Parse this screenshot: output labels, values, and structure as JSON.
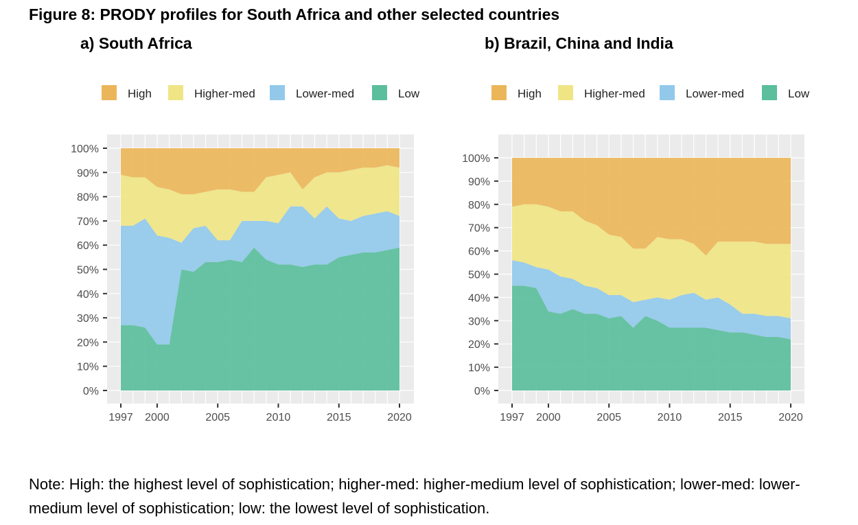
{
  "figure_title": "Figure 8: PRODY profiles for South Africa and other selected countries",
  "note": "Note: High: the highest level of sophistication; higher-med: higher-medium level of sophistication; lower-med: lower-medium level of sophistication; low: the lowest level of sophistication.",
  "colors": {
    "High": "#EBB65A",
    "Higher-med": "#EFE585",
    "Lower-med": "#92C9EA",
    "Low": "#5BBE9C",
    "panel_bg": "#EBEBEB",
    "grid": "#FFFFFF"
  },
  "chart_data": [
    {
      "type": "area",
      "title": "a) South Africa",
      "stacked": true,
      "legend_position": "top",
      "grid": true,
      "x": [
        1997,
        1998,
        1999,
        2000,
        2001,
        2002,
        2003,
        2004,
        2005,
        2006,
        2007,
        2008,
        2009,
        2010,
        2011,
        2012,
        2013,
        2014,
        2015,
        2016,
        2017,
        2018,
        2019,
        2020
      ],
      "xticks": [
        1997,
        2000,
        2005,
        2010,
        2015,
        2020
      ],
      "xlim": [
        1997,
        2020
      ],
      "ylim": [
        0,
        1
      ],
      "yticks": [
        "0%",
        "10%",
        "20%",
        "30%",
        "40%",
        "50%",
        "60%",
        "70%",
        "80%",
        "90%",
        "100%"
      ],
      "series": [
        {
          "name": "Low",
          "values": [
            0.27,
            0.27,
            0.26,
            0.19,
            0.19,
            0.5,
            0.49,
            0.53,
            0.53,
            0.54,
            0.53,
            0.59,
            0.54,
            0.52,
            0.52,
            0.51,
            0.52,
            0.52,
            0.55,
            0.56,
            0.57,
            0.57,
            0.58,
            0.59
          ]
        },
        {
          "name": "Lower-med",
          "values": [
            0.41,
            0.41,
            0.45,
            0.45,
            0.44,
            0.11,
            0.18,
            0.15,
            0.09,
            0.08,
            0.17,
            0.11,
            0.16,
            0.17,
            0.24,
            0.25,
            0.19,
            0.24,
            0.16,
            0.14,
            0.15,
            0.16,
            0.16,
            0.13
          ]
        },
        {
          "name": "Higher-med",
          "values": [
            0.21,
            0.2,
            0.17,
            0.2,
            0.2,
            0.2,
            0.14,
            0.14,
            0.21,
            0.21,
            0.12,
            0.12,
            0.18,
            0.2,
            0.14,
            0.07,
            0.17,
            0.14,
            0.19,
            0.21,
            0.2,
            0.19,
            0.19,
            0.2
          ]
        },
        {
          "name": "High",
          "values": [
            0.11,
            0.12,
            0.12,
            0.16,
            0.17,
            0.19,
            0.19,
            0.18,
            0.17,
            0.17,
            0.18,
            0.18,
            0.12,
            0.11,
            0.1,
            0.17,
            0.12,
            0.1,
            0.1,
            0.09,
            0.08,
            0.08,
            0.07,
            0.08
          ]
        }
      ]
    },
    {
      "type": "area",
      "title": "b) Brazil, China and India",
      "stacked": true,
      "legend_position": "top",
      "grid": true,
      "x": [
        1997,
        1998,
        1999,
        2000,
        2001,
        2002,
        2003,
        2004,
        2005,
        2006,
        2007,
        2008,
        2009,
        2010,
        2011,
        2012,
        2013,
        2014,
        2015,
        2016,
        2017,
        2018,
        2019,
        2020
      ],
      "xticks": [
        1997,
        2000,
        2005,
        2010,
        2015,
        2020
      ],
      "xlim": [
        1997,
        2020
      ],
      "ylim": [
        0,
        1
      ],
      "yticks": [
        "0%",
        "10%",
        "20%",
        "30%",
        "40%",
        "50%",
        "60%",
        "70%",
        "80%",
        "90%",
        "100%"
      ],
      "series": [
        {
          "name": "Low",
          "values": [
            0.45,
            0.45,
            0.44,
            0.34,
            0.33,
            0.35,
            0.33,
            0.33,
            0.31,
            0.32,
            0.27,
            0.32,
            0.3,
            0.27,
            0.27,
            0.27,
            0.27,
            0.26,
            0.25,
            0.25,
            0.24,
            0.23,
            0.23,
            0.22
          ]
        },
        {
          "name": "Lower-med",
          "values": [
            0.11,
            0.1,
            0.09,
            0.18,
            0.16,
            0.13,
            0.12,
            0.11,
            0.1,
            0.09,
            0.11,
            0.07,
            0.1,
            0.12,
            0.14,
            0.15,
            0.12,
            0.14,
            0.12,
            0.08,
            0.09,
            0.09,
            0.09,
            0.09
          ]
        },
        {
          "name": "Higher-med",
          "values": [
            0.23,
            0.25,
            0.27,
            0.27,
            0.28,
            0.29,
            0.28,
            0.27,
            0.26,
            0.25,
            0.23,
            0.22,
            0.26,
            0.26,
            0.24,
            0.21,
            0.19,
            0.24,
            0.27,
            0.31,
            0.31,
            0.31,
            0.31,
            0.32
          ]
        },
        {
          "name": "High",
          "values": [
            0.21,
            0.2,
            0.2,
            0.21,
            0.23,
            0.23,
            0.27,
            0.29,
            0.33,
            0.34,
            0.39,
            0.39,
            0.34,
            0.35,
            0.35,
            0.37,
            0.42,
            0.36,
            0.36,
            0.36,
            0.36,
            0.37,
            0.37,
            0.37
          ]
        }
      ]
    }
  ]
}
